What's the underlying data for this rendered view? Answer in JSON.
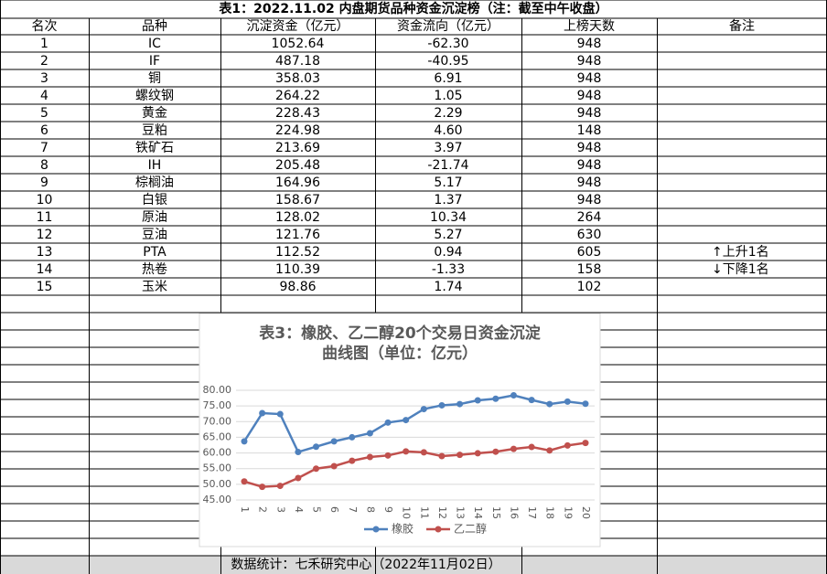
{
  "title": "表1：2022.11.02 内盘期货品种资金沉淀榜（注：截至中午收盘）",
  "table": {
    "columns": [
      "名次",
      "品种",
      "沉淀资金（亿元）",
      "资金流向（亿元）",
      "上榜天数",
      "备注"
    ],
    "rows": [
      [
        "1",
        "IC",
        "1052.64",
        "-62.30",
        "948",
        null
      ],
      [
        "2",
        "IF",
        "487.18",
        "-40.95",
        "948",
        null
      ],
      [
        "3",
        "铜",
        "358.03",
        "6.91",
        "948",
        null
      ],
      [
        "4",
        "螺纹钢",
        "264.22",
        "1.05",
        "948",
        null
      ],
      [
        "5",
        "黄金",
        "228.43",
        "2.29",
        "948",
        null
      ],
      [
        "6",
        "豆粕",
        "224.98",
        "4.60",
        "148",
        null
      ],
      [
        "7",
        "铁矿石",
        "213.69",
        "3.97",
        "948",
        null
      ],
      [
        "8",
        "IH",
        "205.48",
        "-21.74",
        "948",
        null
      ],
      [
        "9",
        "棕榈油",
        "164.96",
        "5.17",
        "948",
        null
      ],
      [
        "10",
        "白银",
        "158.67",
        "1.37",
        "948",
        null
      ],
      [
        "11",
        "原油",
        "128.02",
        "10.34",
        "264",
        null
      ],
      [
        "12",
        "豆油",
        "121.76",
        "5.27",
        "630",
        null
      ],
      [
        "13",
        "PTA",
        "112.52",
        "0.94",
        "605",
        "↑上升1名"
      ],
      [
        "14",
        "热卷",
        "110.39",
        "-1.33",
        "158",
        "↓下降1名"
      ],
      [
        "15",
        "玉米",
        "98.86",
        "1.74",
        "102",
        null
      ]
    ]
  },
  "footer": "数据统计：七禾研究中心（2022年11月02日）",
  "chart_data": {
    "type": "line",
    "title": [
      "表3：橡胶、乙二醇20个交易日资金沉淀",
      "曲线图（单位：亿元）"
    ],
    "categories": [
      "1",
      "2",
      "3",
      "4",
      "5",
      "6",
      "7",
      "8",
      "9",
      "10",
      "11",
      "12",
      "13",
      "14",
      "15",
      "16",
      "17",
      "18",
      "19",
      "20"
    ],
    "series": [
      {
        "name": "橡胶",
        "color": "#4f81bd",
        "values": [
          63.7,
          72.7,
          72.4,
          60.3,
          62.0,
          63.7,
          65.0,
          66.3,
          69.7,
          70.5,
          74.0,
          75.2,
          75.6,
          76.8,
          77.3,
          78.4,
          76.9,
          75.6,
          76.4,
          75.7
        ]
      },
      {
        "name": "乙二醇",
        "color": "#c0504d",
        "values": [
          50.9,
          49.2,
          49.5,
          52.0,
          55.0,
          55.8,
          57.5,
          58.7,
          59.2,
          60.5,
          60.2,
          59.0,
          59.4,
          59.9,
          60.4,
          61.3,
          61.9,
          60.8,
          62.4,
          63.2
        ]
      }
    ],
    "ylim": [
      45,
      80
    ],
    "yticks": [
      {
        "value": 45,
        "label": "45.00"
      },
      {
        "value": 50,
        "label": "50.00"
      },
      {
        "value": 55,
        "label": "55.00"
      },
      {
        "value": 60,
        "label": "60.00"
      },
      {
        "value": 65,
        "label": "65.00"
      },
      {
        "value": 70,
        "label": "70.00"
      },
      {
        "value": 75,
        "label": "75.00"
      },
      {
        "value": 80,
        "label": "80.00"
      }
    ],
    "grid": true,
    "legend": "bottom"
  }
}
